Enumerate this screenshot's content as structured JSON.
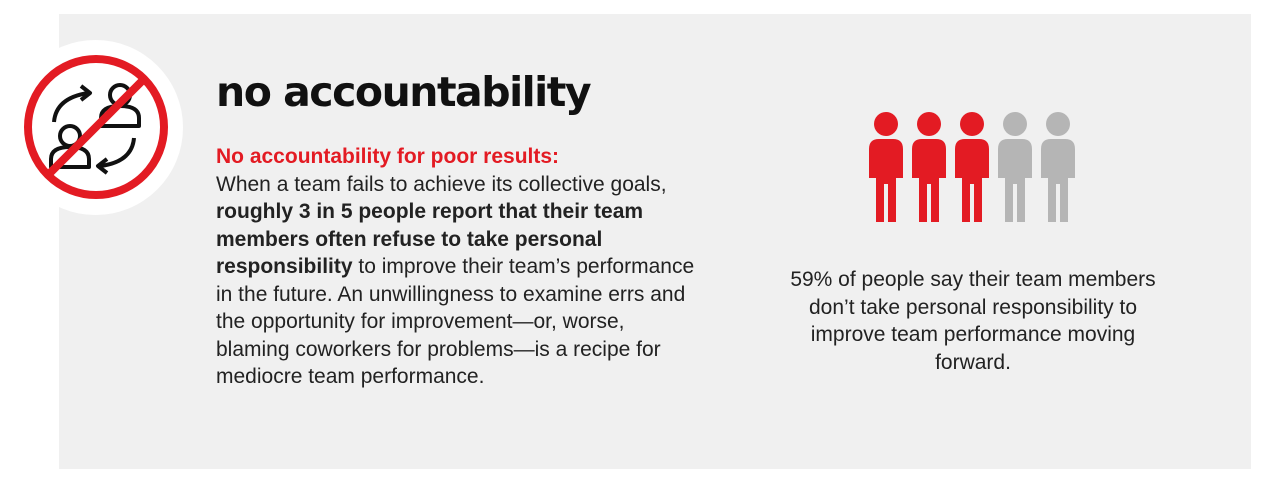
{
  "title": "no accountability",
  "body": {
    "subhead": "No accountability for poor results:",
    "text_1": "When a team fails to achieve its collective goals, ",
    "highlight": "roughly 3 in 5 people report that their team members often refuse to take personal responsibility",
    "text_2": " to improve their team’s performance in the future. An unwillingness to examine errs and the opportunity for improvement—or, worse, blaming coworkers for problems—is a recipe for mediocre team performance."
  },
  "stat": {
    "highlighted_people": 3,
    "total_people": 5,
    "caption": "59% of people say their team members don’t take personal responsibility to improve team performance moving forward."
  },
  "colors": {
    "accent": "#e31b23",
    "muted": "#b5b5b5",
    "panel": "#f0f0f0",
    "text": "#1a1a1a"
  },
  "icons": {
    "badge": "no-accountability-icon",
    "person": "person-icon"
  }
}
